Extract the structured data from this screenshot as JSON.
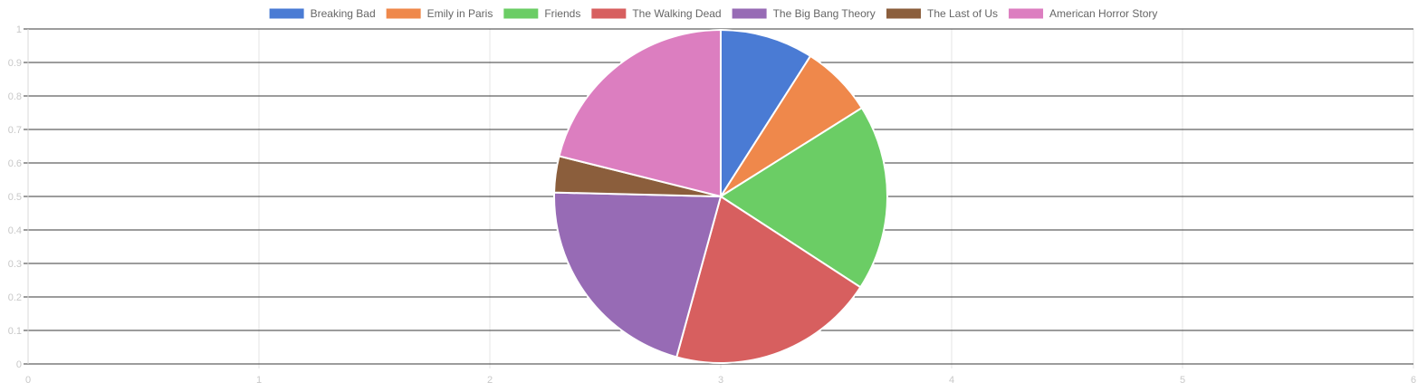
{
  "chart_data": {
    "type": "pie",
    "categories": [
      "Breaking Bad",
      "Emily in Paris",
      "Friends",
      "The Walking Dead",
      "The Big Bang Theory",
      "The Last of Us",
      "American Horror Story"
    ],
    "values": [
      9,
      7,
      18,
      20,
      21,
      3.5,
      21
    ],
    "colors": [
      "#4a7bd4",
      "#ef884b",
      "#6bcd65",
      "#d75f5f",
      "#976bb5",
      "#8b5e3c",
      "#dc7ec0"
    ],
    "legend_position": "top",
    "x_axis": {
      "ticks": [
        "0",
        "1",
        "2",
        "3",
        "4",
        "5",
        "6"
      ],
      "range": [
        0,
        6
      ],
      "grid": true
    },
    "y_axis": {
      "ticks": [
        "0",
        "0.1",
        "0.2",
        "0.3",
        "0.4",
        "0.5",
        "0.6",
        "0.7",
        "0.8",
        "0.9",
        "1"
      ],
      "range": [
        0,
        1
      ],
      "grid": true
    }
  }
}
